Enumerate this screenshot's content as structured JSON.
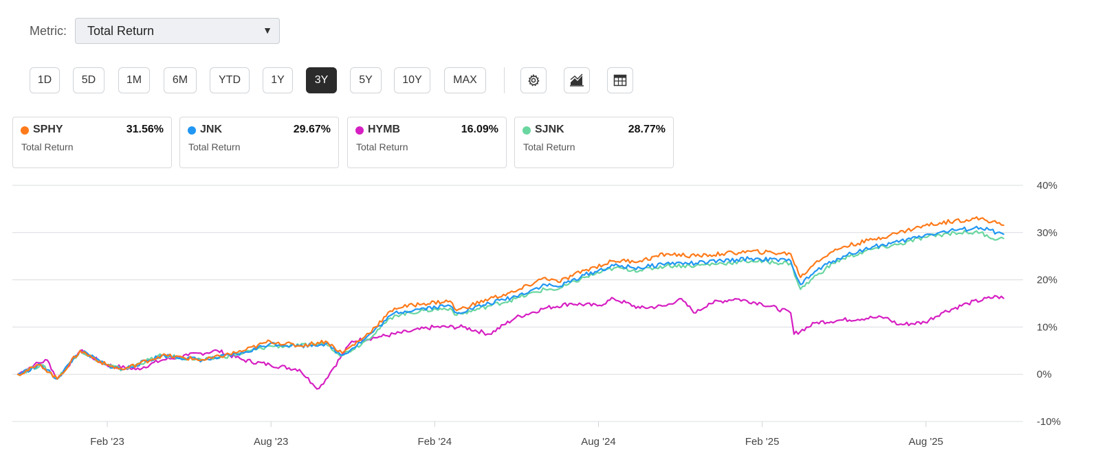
{
  "metric": {
    "label": "Metric:",
    "selected": "Total Return"
  },
  "periods": [
    "1D",
    "5D",
    "1M",
    "6M",
    "YTD",
    "1Y",
    "3Y",
    "5Y",
    "10Y",
    "MAX"
  ],
  "active_period": "3Y",
  "toolbar_icons": [
    "gear-icon",
    "chart-type-icon",
    "table-icon"
  ],
  "legend": [
    {
      "ticker": "SPHY",
      "value": "31.56%",
      "sub": "Total Return",
      "color": "#ff7a1a"
    },
    {
      "ticker": "JNK",
      "value": "29.67%",
      "sub": "Total Return",
      "color": "#2196f3"
    },
    {
      "ticker": "HYMB",
      "value": "16.09%",
      "sub": "Total Return",
      "color": "#d61fc2"
    },
    {
      "ticker": "SJNK",
      "value": "28.77%",
      "sub": "Total Return",
      "color": "#6ad6a0"
    }
  ],
  "chart_data": {
    "type": "line",
    "ylim": [
      -10,
      40
    ],
    "y_ticks": [
      "40%",
      "30%",
      "20%",
      "10%",
      "0%",
      "-10%"
    ],
    "y_tick_values": [
      40,
      30,
      20,
      10,
      0,
      -10
    ],
    "x_ticks": [
      "Feb '23",
      "Aug '23",
      "Feb '24",
      "Aug '24",
      "Feb '25",
      "Aug '25"
    ],
    "x_tick_positions": [
      2023.083,
      2023.583,
      2024.083,
      2024.583,
      2025.083,
      2025.583
    ],
    "xlim": [
      2022.81,
      2025.85
    ],
    "grid": true,
    "series": [
      {
        "name": "SPHY",
        "color": "#ff7a1a",
        "x": [
          2022.81,
          2022.88,
          2022.93,
          2023.0,
          2023.08,
          2023.13,
          2023.25,
          2023.38,
          2023.5,
          2023.58,
          2023.67,
          2023.75,
          2023.8,
          2023.87,
          2023.96,
          2024.05,
          2024.13,
          2024.15,
          2024.25,
          2024.33,
          2024.42,
          2024.46,
          2024.54,
          2024.63,
          2024.71,
          2024.79,
          2024.88,
          2024.96,
          2025.05,
          2025.17,
          2025.2,
          2025.25,
          2025.3,
          2025.33,
          2025.42,
          2025.5,
          2025.58,
          2025.67,
          2025.75,
          2025.8,
          2025.82
        ],
        "y": [
          0,
          2,
          -1,
          5,
          2,
          1,
          4,
          3,
          5,
          7,
          6,
          7,
          4.5,
          8,
          14,
          15,
          15.5,
          13.5,
          16,
          17.5,
          20.5,
          19.5,
          22,
          24,
          24,
          25.5,
          25,
          25.5,
          26,
          25.5,
          20.5,
          24,
          26,
          27,
          28.5,
          30,
          31.5,
          32.5,
          33,
          32,
          31.56
        ]
      },
      {
        "name": "JNK",
        "color": "#2196f3",
        "x": [
          2022.81,
          2022.88,
          2022.93,
          2023.0,
          2023.08,
          2023.13,
          2023.25,
          2023.38,
          2023.5,
          2023.58,
          2023.67,
          2023.75,
          2023.8,
          2023.87,
          2023.96,
          2024.05,
          2024.13,
          2024.15,
          2024.25,
          2024.33,
          2024.42,
          2024.46,
          2024.54,
          2024.63,
          2024.71,
          2024.79,
          2024.88,
          2024.96,
          2025.05,
          2025.17,
          2025.2,
          2025.25,
          2025.3,
          2025.33,
          2025.42,
          2025.5,
          2025.58,
          2025.67,
          2025.75,
          2025.8,
          2025.82
        ],
        "y": [
          0,
          2,
          -1,
          5,
          2,
          1,
          4,
          3,
          4.5,
          6.5,
          6,
          6.5,
          4,
          7.5,
          13,
          14,
          14.5,
          13,
          15,
          16.5,
          19,
          18.5,
          21,
          23,
          22.5,
          23.5,
          23.5,
          24,
          24.5,
          24,
          19,
          22,
          24,
          25,
          27,
          28,
          29.5,
          30.5,
          31,
          30,
          29.67
        ]
      },
      {
        "name": "HYMB",
        "color": "#d61fc2",
        "x": [
          2022.81,
          2022.86,
          2022.9,
          2022.93,
          2023.0,
          2023.08,
          2023.17,
          2023.25,
          2023.33,
          2023.42,
          2023.5,
          2023.58,
          2023.67,
          2023.71,
          2023.73,
          2023.77,
          2023.83,
          2023.92,
          2024.0,
          2024.08,
          2024.17,
          2024.25,
          2024.33,
          2024.42,
          2024.5,
          2024.58,
          2024.63,
          2024.71,
          2024.79,
          2024.83,
          2024.88,
          2024.92,
          2025.0,
          2025.08,
          2025.17,
          2025.18,
          2025.25,
          2025.33,
          2025.42,
          2025.46,
          2025.5,
          2025.58,
          2025.63,
          2025.71,
          2025.8,
          2025.82
        ],
        "y": [
          0,
          2,
          3,
          -1,
          5,
          2,
          1,
          3,
          4,
          5,
          3,
          2,
          1,
          -2,
          -3,
          1,
          7,
          8,
          9,
          10,
          10,
          8.5,
          12,
          14,
          15,
          14.5,
          16,
          14,
          14.5,
          16,
          13,
          15,
          16,
          15,
          13,
          8.5,
          11,
          11.5,
          12,
          12,
          10.5,
          11,
          13,
          15,
          16.5,
          16.09
        ]
      },
      {
        "name": "SJNK",
        "color": "#6ad6a0",
        "x": [
          2022.81,
          2022.88,
          2022.93,
          2023.0,
          2023.08,
          2023.13,
          2023.25,
          2023.38,
          2023.5,
          2023.58,
          2023.67,
          2023.75,
          2023.8,
          2023.87,
          2023.96,
          2024.05,
          2024.13,
          2024.15,
          2024.25,
          2024.33,
          2024.42,
          2024.46,
          2024.54,
          2024.63,
          2024.71,
          2024.79,
          2024.88,
          2024.96,
          2025.05,
          2025.17,
          2025.2,
          2025.25,
          2025.3,
          2025.33,
          2025.42,
          2025.5,
          2025.58,
          2025.67,
          2025.75,
          2025.8,
          2025.82
        ],
        "y": [
          0,
          2,
          -1,
          5,
          2,
          1,
          4,
          3,
          4.5,
          6,
          6,
          6.5,
          4,
          7,
          12.5,
          13.5,
          14,
          12.5,
          14.5,
          16,
          18,
          18,
          20.5,
          22.5,
          22,
          23,
          23,
          23.5,
          24,
          23.5,
          18,
          21,
          23.5,
          24.5,
          26.5,
          27.5,
          29,
          30,
          30,
          28.5,
          28.77
        ]
      }
    ]
  }
}
